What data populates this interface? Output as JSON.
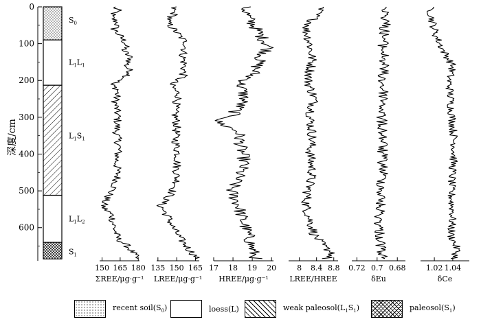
{
  "chart_data": {
    "type": "line",
    "orientation": "depth-profile",
    "y_axis": {
      "label": "深度/cm",
      "ticks": [
        0,
        100,
        200,
        300,
        400,
        500,
        600
      ],
      "range": [
        0,
        690
      ],
      "inverted": true
    },
    "column": {
      "layers": [
        {
          "name": "S0",
          "label": "S",
          "sub": "0",
          "from": 0,
          "to": 90,
          "pattern": "recent-soil"
        },
        {
          "name": "L1L1",
          "label": "L",
          "sub": "1",
          "label2": "L",
          "sub2": "1",
          "from": 90,
          "to": 213,
          "pattern": "loess"
        },
        {
          "name": "L1S1",
          "label": "L",
          "sub": "1",
          "label2": "S",
          "sub2": "1",
          "from": 213,
          "to": 512,
          "pattern": "weak-paleosol"
        },
        {
          "name": "L1L2",
          "label": "L",
          "sub": "1",
          "label2": "L",
          "sub2": "2",
          "from": 512,
          "to": 640,
          "pattern": "loess"
        },
        {
          "name": "S1",
          "label": "S",
          "sub": "1",
          "from": 640,
          "to": 685,
          "pattern": "paleosol"
        }
      ],
      "label_depths": [
        35,
        150,
        350,
        575,
        665
      ]
    },
    "panels": [
      {
        "name": "sum-ree",
        "xlabel": "ΣREE/μg·g⁻¹",
        "xlim": [
          148,
          181
        ],
        "ticks": [
          150,
          165,
          180
        ],
        "anchors": [
          [
            0,
            160
          ],
          [
            10,
            163
          ],
          [
            25,
            157
          ],
          [
            45,
            163
          ],
          [
            60,
            160
          ],
          [
            80,
            165
          ],
          [
            100,
            170
          ],
          [
            120,
            168
          ],
          [
            140,
            174
          ],
          [
            160,
            170
          ],
          [
            180,
            174
          ],
          [
            200,
            166
          ],
          [
            210,
            157
          ],
          [
            225,
            163
          ],
          [
            260,
            161
          ],
          [
            300,
            163
          ],
          [
            340,
            162
          ],
          [
            380,
            164
          ],
          [
            420,
            162
          ],
          [
            460,
            163
          ],
          [
            490,
            160
          ],
          [
            510,
            156
          ],
          [
            530,
            152
          ],
          [
            545,
            151
          ],
          [
            565,
            158
          ],
          [
            600,
            160
          ],
          [
            630,
            163
          ],
          [
            650,
            171
          ],
          [
            670,
            176
          ],
          [
            685,
            179
          ]
        ],
        "noise": 3.5
      },
      {
        "name": "lree",
        "xlabel": "LREE/μg·g⁻¹",
        "xlim": [
          134,
          168
        ],
        "ticks": [
          135,
          150,
          165
        ],
        "anchors": [
          [
            0,
            147
          ],
          [
            20,
            148
          ],
          [
            40,
            142
          ],
          [
            70,
            150
          ],
          [
            100,
            158
          ],
          [
            130,
            155
          ],
          [
            160,
            156
          ],
          [
            190,
            155
          ],
          [
            210,
            145
          ],
          [
            240,
            152
          ],
          [
            280,
            148
          ],
          [
            320,
            150
          ],
          [
            360,
            149
          ],
          [
            400,
            151
          ],
          [
            440,
            150
          ],
          [
            480,
            150
          ],
          [
            510,
            145
          ],
          [
            540,
            137
          ],
          [
            570,
            143
          ],
          [
            600,
            147
          ],
          [
            630,
            153
          ],
          [
            660,
            160
          ],
          [
            685,
            167
          ]
        ],
        "noise": 3.5
      },
      {
        "name": "hree",
        "xlabel": "HREE/μg·g⁻¹",
        "xlim": [
          17,
          20.1
        ],
        "ticks": [
          17,
          18,
          19,
          20
        ],
        "anchors": [
          [
            0,
            18.6
          ],
          [
            30,
            18.8
          ],
          [
            60,
            19.2
          ],
          [
            90,
            19.6
          ],
          [
            110,
            19.9
          ],
          [
            140,
            19.4
          ],
          [
            180,
            19.1
          ],
          [
            210,
            18.4
          ],
          [
            250,
            18.6
          ],
          [
            300,
            17.9
          ],
          [
            310,
            17.1
          ],
          [
            340,
            18.3
          ],
          [
            380,
            18.4
          ],
          [
            420,
            18.6
          ],
          [
            460,
            18.3
          ],
          [
            500,
            17.9
          ],
          [
            540,
            18.3
          ],
          [
            580,
            18.5
          ],
          [
            620,
            18.8
          ],
          [
            660,
            19.0
          ],
          [
            685,
            19.2
          ]
        ],
        "noise": 0.35
      },
      {
        "name": "lree-hree",
        "xlabel": "LREE/HREE",
        "xlim": [
          7.75,
          8.9
        ],
        "ticks": [
          8.0,
          8.4,
          8.8
        ],
        "anchors": [
          [
            0,
            8.5
          ],
          [
            30,
            8.35
          ],
          [
            60,
            8.15
          ],
          [
            100,
            8.25
          ],
          [
            150,
            8.3
          ],
          [
            200,
            8.2
          ],
          [
            250,
            8.35
          ],
          [
            300,
            8.25
          ],
          [
            350,
            8.3
          ],
          [
            400,
            8.25
          ],
          [
            450,
            8.3
          ],
          [
            500,
            8.2
          ],
          [
            540,
            8.15
          ],
          [
            580,
            8.25
          ],
          [
            620,
            8.35
          ],
          [
            650,
            8.55
          ],
          [
            670,
            8.8
          ],
          [
            685,
            8.6
          ]
        ],
        "noise": 0.12
      },
      {
        "name": "delta-eu",
        "xlabel": "δEu",
        "xlim": [
          0.725,
          0.672
        ],
        "ticks": [
          0.72,
          0.7,
          0.68
        ],
        "anchors": [
          [
            0,
            0.69
          ],
          [
            50,
            0.692
          ],
          [
            100,
            0.694
          ],
          [
            150,
            0.693
          ],
          [
            200,
            0.695
          ],
          [
            250,
            0.693
          ],
          [
            300,
            0.696
          ],
          [
            350,
            0.694
          ],
          [
            400,
            0.695
          ],
          [
            450,
            0.694
          ],
          [
            500,
            0.696
          ],
          [
            550,
            0.697
          ],
          [
            600,
            0.698
          ],
          [
            650,
            0.696
          ],
          [
            685,
            0.695
          ]
        ],
        "noise": 0.0055
      },
      {
        "name": "delta-ce",
        "xlabel": "δCe",
        "xlim": [
          1.005,
          1.058
        ],
        "ticks": [
          1.02,
          1.04
        ],
        "anchors": [
          [
            0,
            1.015
          ],
          [
            40,
            1.018
          ],
          [
            80,
            1.022
          ],
          [
            120,
            1.03
          ],
          [
            160,
            1.04
          ],
          [
            200,
            1.036
          ],
          [
            260,
            1.038
          ],
          [
            320,
            1.04
          ],
          [
            380,
            1.042
          ],
          [
            440,
            1.04
          ],
          [
            500,
            1.038
          ],
          [
            560,
            1.04
          ],
          [
            620,
            1.038
          ],
          [
            660,
            1.045
          ],
          [
            685,
            1.042
          ]
        ],
        "noise": 0.0045
      }
    ],
    "legend": [
      {
        "text": "recent soil(S",
        "sub": "0",
        "tail": ")",
        "pattern": "recent-soil"
      },
      {
        "text": "loess(L)",
        "sub": "",
        "tail": "",
        "pattern": "loess"
      },
      {
        "text": "weak paleosol(L",
        "sub": "1",
        "mid": "S",
        "sub2": "1",
        "tail": ")",
        "pattern": "weak-paleosol"
      },
      {
        "text": "paleosol(S",
        "sub": "1",
        "tail": ")",
        "pattern": "paleosol"
      }
    ]
  }
}
